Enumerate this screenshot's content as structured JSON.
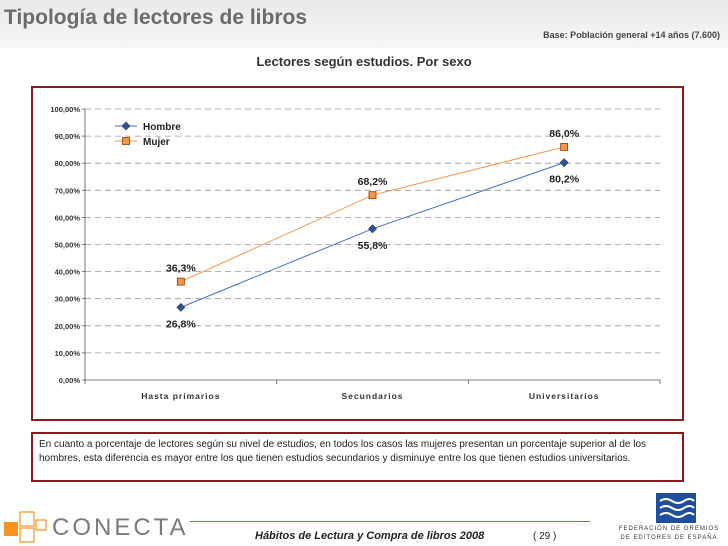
{
  "header": {
    "title": "Tipología de lectores de libros",
    "base_note": "Base: Población general +14 años (7.600)"
  },
  "chart_data": {
    "type": "line",
    "title": "Lectores según estudios. Por sexo",
    "categories": [
      "Hasta primarios",
      "Secundarios",
      "Universitarios"
    ],
    "series": [
      {
        "name": "Hombre",
        "values": [
          26.8,
          55.8,
          80.2
        ],
        "labels": [
          "26,8%",
          "55,8%",
          "80,2%"
        ],
        "color": "#4472c4",
        "marker": "diamond"
      },
      {
        "name": "Mujer",
        "values": [
          36.3,
          68.2,
          86.0
        ],
        "labels": [
          "36,3%",
          "68,2%",
          "86,0%"
        ],
        "color": "#f79646",
        "marker": "square"
      }
    ],
    "y_ticks": [
      {
        "value": 0,
        "label": "0,00%"
      },
      {
        "value": 10,
        "label": "10,00%"
      },
      {
        "value": 20,
        "label": "20,00%"
      },
      {
        "value": 30,
        "label": "30,00%"
      },
      {
        "value": 40,
        "label": "40,00%"
      },
      {
        "value": 50,
        "label": "50,00%"
      },
      {
        "value": 60,
        "label": "60,00%"
      },
      {
        "value": 70,
        "label": "70,00%"
      },
      {
        "value": 80,
        "label": "80,00%"
      },
      {
        "value": 90,
        "label": "90,00%"
      },
      {
        "value": 100,
        "label": "100,00%"
      }
    ],
    "ylim": [
      0,
      100
    ],
    "grid": true,
    "legend_position": "top-left"
  },
  "note": {
    "text": "En cuanto a porcentaje de lectores según su nivel de estudios, en todos los casos las mujeres presentan un porcentaje superior al de los hombres, esta diferencia es mayor entre los que tienen estudios secundarios y disminuye entre los que tienen estudios universitarios."
  },
  "footer": {
    "brand": "CONECTA",
    "title": "Hábitos de Lectura y Compra de libros 2008",
    "page": "( 29 )",
    "fge_line1": "FEDERACIÓN DE GREMIOS",
    "fge_line2": "DE EDITORES DE ESPAÑA"
  },
  "colors": {
    "frame": "#8b1a1a",
    "hombre": "#4472c4",
    "mujer": "#f79646"
  }
}
